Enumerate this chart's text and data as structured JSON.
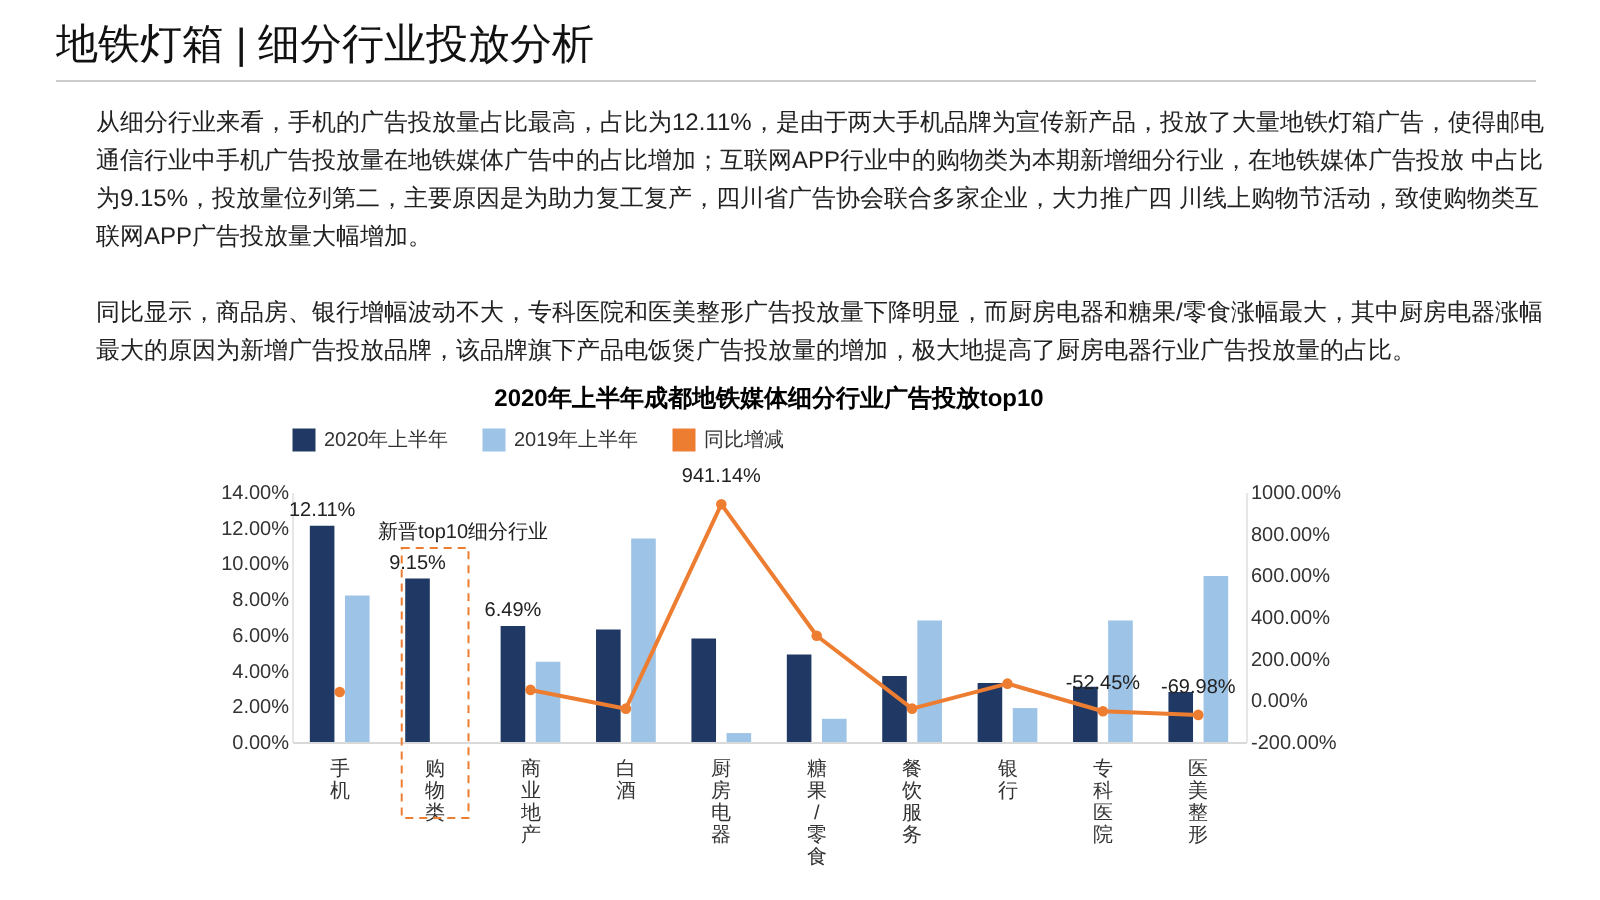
{
  "chart_data": {
    "type": "bar",
    "title": "2020年上半年成都地铁媒体细分行业广告投放top10",
    "annotations": [
      "地铁灯箱 | 细分行业投放分析",
      "从细分行业来看，手机的广告投放量占比最高，占比为12.11%，是由于两大手机品牌为宣传新产品，投放了大量地铁灯箱广告，使得邮电通信行业中手机广告投放量在地铁媒体广告中的占比增加；互联网APP行业中的购物类为本期新增细分行业，在地铁媒体广告投放 中占比为9.15%，投放量位列第二，主要原因是为助力复工复产，四川省广告协会联合多家企业，大力推广四 川线上购物节活动，致使购物类互联网APP广告投放量大幅增加。",
      "同比显示，商品房、银行增幅波动不大，专科医院和医美整形广告投放量下降明显，而厨房电器和糖果/零食涨幅最大，其中厨房电器涨幅最大的原因为新增广告投放品牌，该品牌旗下产品电饭煲广告投放量的增加，极大地提高了厨房电器行业广告投放量的占比。",
      "新晋top10细分行业"
    ],
    "categories": [
      "手机",
      "购物类",
      "商业地产",
      "白酒",
      "厨房电器",
      "糖果/零食",
      "餐饮服务",
      "银行",
      "专科医院",
      "医美整形"
    ],
    "series": [
      {
        "name": "2020年上半年",
        "color": "#203864",
        "values": [
          12.11,
          9.15,
          6.49,
          6.3,
          5.8,
          4.9,
          3.7,
          3.3,
          3.1,
          2.8
        ],
        "value_labels": [
          "12.11%",
          "9.15%",
          "6.49%",
          null,
          null,
          null,
          null,
          null,
          null,
          null
        ]
      },
      {
        "name": "2019年上半年",
        "color": "#9dc3e6",
        "values": [
          8.2,
          null,
          4.5,
          11.4,
          0.5,
          1.3,
          6.8,
          1.9,
          6.8,
          9.3
        ]
      },
      {
        "name": "同比增减",
        "type": "line",
        "axis": "y2",
        "marker": "circle",
        "color": "#ed7d31",
        "values": [
          40,
          null,
          50,
          -40,
          941.14,
          310,
          -40,
          80,
          -52.45,
          -69.98
        ],
        "value_labels": [
          null,
          null,
          null,
          null,
          "941.14%",
          null,
          null,
          null,
          "-52.45%",
          "-69.98%"
        ]
      }
    ],
    "ylim": [
      0,
      14
    ],
    "yticks": [
      {
        "value": 0,
        "label": "0.00%"
      },
      {
        "value": 2,
        "label": "2.00%"
      },
      {
        "value": 4,
        "label": "4.00%"
      },
      {
        "value": 6,
        "label": "6.00%"
      },
      {
        "value": 8,
        "label": "8.00%"
      },
      {
        "value": 10,
        "label": "10.00%"
      },
      {
        "value": 12,
        "label": "12.00%"
      },
      {
        "value": 14,
        "label": "14.00%"
      }
    ],
    "y2lim": [
      -200,
      1000
    ],
    "y2ticks": [
      {
        "value": -200,
        "label": "-200.00%"
      },
      {
        "value": 0,
        "label": "0.00%"
      },
      {
        "value": 200,
        "label": "200.00%"
      },
      {
        "value": 400,
        "label": "400.00%"
      },
      {
        "value": 600,
        "label": "600.00%"
      },
      {
        "value": 800,
        "label": "800.00%"
      },
      {
        "value": 1000,
        "label": "1000.00%"
      }
    ],
    "legend": "top",
    "grid": false
  }
}
